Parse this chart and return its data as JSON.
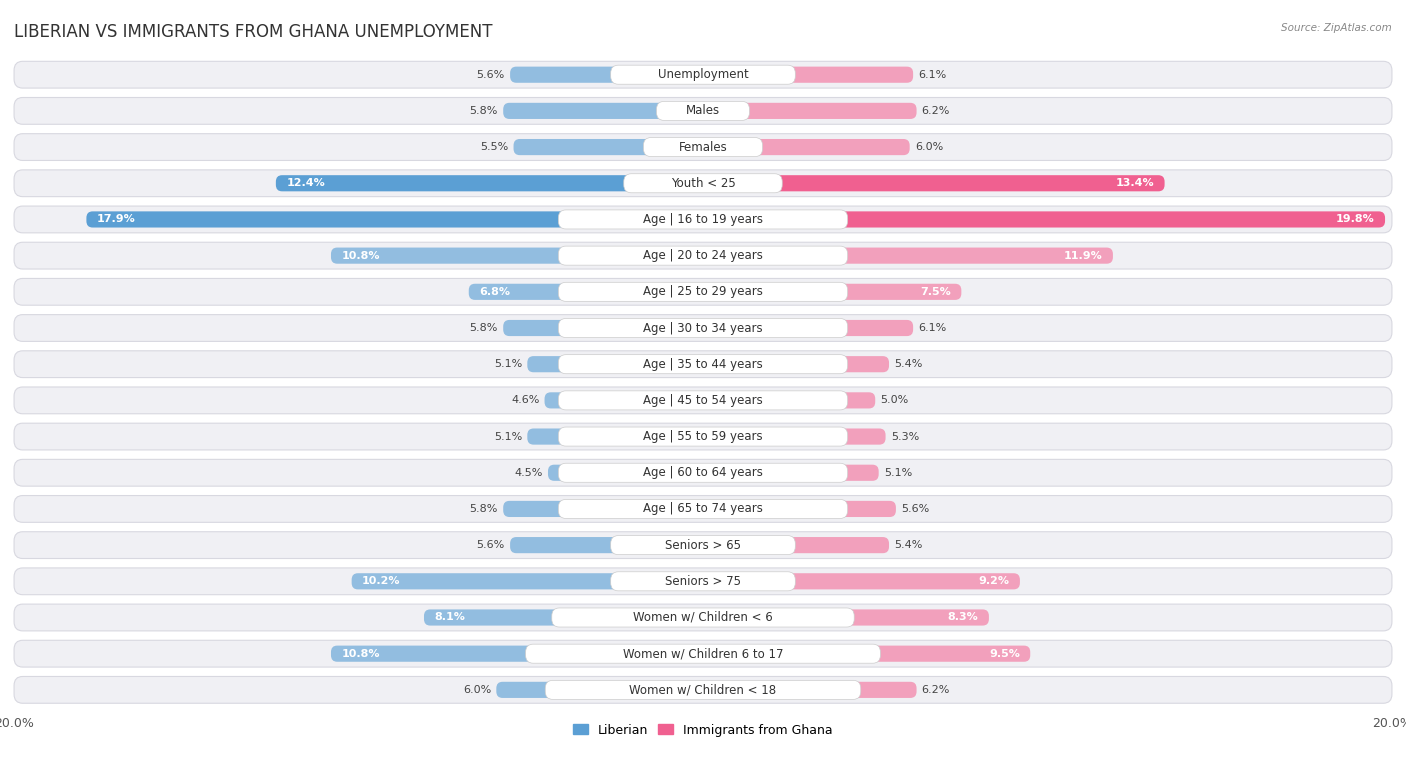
{
  "title": "LIBERIAN VS IMMIGRANTS FROM GHANA UNEMPLOYMENT",
  "source": "Source: ZipAtlas.com",
  "categories": [
    "Unemployment",
    "Males",
    "Females",
    "Youth < 25",
    "Age | 16 to 19 years",
    "Age | 20 to 24 years",
    "Age | 25 to 29 years",
    "Age | 30 to 34 years",
    "Age | 35 to 44 years",
    "Age | 45 to 54 years",
    "Age | 55 to 59 years",
    "Age | 60 to 64 years",
    "Age | 65 to 74 years",
    "Seniors > 65",
    "Seniors > 75",
    "Women w/ Children < 6",
    "Women w/ Children 6 to 17",
    "Women w/ Children < 18"
  ],
  "liberian": [
    5.6,
    5.8,
    5.5,
    12.4,
    17.9,
    10.8,
    6.8,
    5.8,
    5.1,
    4.6,
    5.1,
    4.5,
    5.8,
    5.6,
    10.2,
    8.1,
    10.8,
    6.0
  ],
  "ghana": [
    6.1,
    6.2,
    6.0,
    13.4,
    19.8,
    11.9,
    7.5,
    6.1,
    5.4,
    5.0,
    5.3,
    5.1,
    5.6,
    5.4,
    9.2,
    8.3,
    9.5,
    6.2
  ],
  "liberian_color": "#92bde0",
  "ghana_color": "#f2a0bc",
  "liberian_color_dark": "#5b9fd4",
  "ghana_color_dark": "#f06090",
  "row_bg": "#f0f0f4",
  "row_border": "#d8d8e0",
  "max_val": 20.0,
  "legend_liberian": "Liberian",
  "legend_ghana": "Immigrants from Ghana",
  "title_fontsize": 12,
  "label_fontsize": 8.5,
  "value_fontsize": 8.0
}
